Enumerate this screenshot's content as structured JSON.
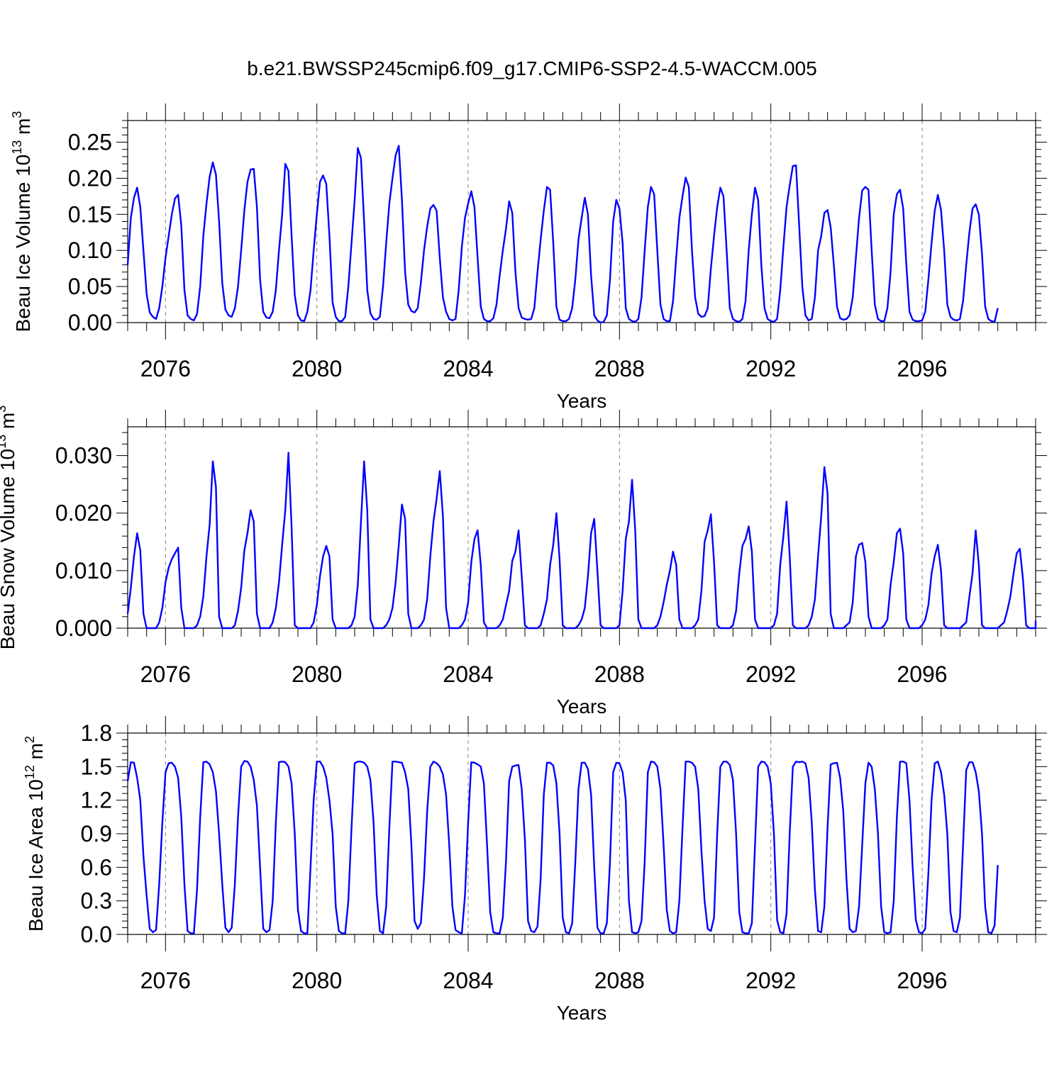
{
  "title": "b.e21.BWSSP245cmip6.f09_g17.CMIP6-SSP2-4.5-WACCM.005",
  "colors": {
    "line": "#0000ff",
    "axis": "#000000",
    "grid": "#808080"
  },
  "chart_data": [
    {
      "type": "line",
      "ylabel_main": "Beau Ice Volume 10",
      "ylabel_exp1": "13",
      "ylabel_mid": " m",
      "ylabel_exp2": "3",
      "xlabel": "Years",
      "xlim": [
        2075,
        2099
      ],
      "ylim": [
        0,
        0.28
      ],
      "yticks": [
        0.0,
        0.05,
        0.1,
        0.15,
        0.2,
        0.25
      ],
      "ytick_labels": [
        "0.00",
        "0.05",
        "0.10",
        "0.15",
        "0.20",
        "0.25"
      ],
      "xticks": [
        2076,
        2080,
        2084,
        2088,
        2092,
        2096
      ],
      "xtick_labels": [
        "2076",
        "2080",
        "2084",
        "2088",
        "2092",
        "2096"
      ],
      "x_start": 2075.0,
      "x_step": 0.08333,
      "values": [
        0.08,
        0.145,
        0.173,
        0.187,
        0.16,
        0.1,
        0.04,
        0.014,
        0.008,
        0.005,
        0.02,
        0.05,
        0.09,
        0.12,
        0.15,
        0.172,
        0.177,
        0.135,
        0.045,
        0.01,
        0.005,
        0.003,
        0.012,
        0.05,
        0.12,
        0.165,
        0.202,
        0.222,
        0.205,
        0.14,
        0.055,
        0.018,
        0.01,
        0.008,
        0.02,
        0.05,
        0.1,
        0.155,
        0.195,
        0.212,
        0.213,
        0.16,
        0.06,
        0.015,
        0.007,
        0.006,
        0.015,
        0.045,
        0.1,
        0.15,
        0.22,
        0.21,
        0.12,
        0.038,
        0.01,
        0.003,
        0.002,
        0.015,
        0.045,
        0.1,
        0.15,
        0.195,
        0.204,
        0.192,
        0.12,
        0.028,
        0.008,
        0.002,
        0.002,
        0.008,
        0.05,
        0.11,
        0.17,
        0.242,
        0.228,
        0.14,
        0.045,
        0.013,
        0.005,
        0.004,
        0.008,
        0.05,
        0.11,
        0.165,
        0.2,
        0.232,
        0.245,
        0.17,
        0.07,
        0.025,
        0.016,
        0.014,
        0.02,
        0.055,
        0.1,
        0.133,
        0.158,
        0.163,
        0.155,
        0.09,
        0.035,
        0.015,
        0.005,
        0.003,
        0.005,
        0.045,
        0.105,
        0.145,
        0.165,
        0.182,
        0.16,
        0.09,
        0.022,
        0.005,
        0.002,
        0.002,
        0.006,
        0.025,
        0.065,
        0.1,
        0.13,
        0.168,
        0.152,
        0.07,
        0.02,
        0.007,
        0.005,
        0.004,
        0.005,
        0.02,
        0.07,
        0.115,
        0.155,
        0.188,
        0.184,
        0.11,
        0.022,
        0.004,
        0.002,
        0.002,
        0.005,
        0.02,
        0.06,
        0.115,
        0.145,
        0.173,
        0.15,
        0.065,
        0.01,
        0.003,
        0.0,
        0.001,
        0.01,
        0.06,
        0.14,
        0.17,
        0.158,
        0.11,
        0.02,
        0.005,
        0.002,
        0.001,
        0.005,
        0.035,
        0.1,
        0.16,
        0.188,
        0.178,
        0.1,
        0.025,
        0.005,
        0.002,
        0.002,
        0.03,
        0.09,
        0.145,
        0.175,
        0.201,
        0.188,
        0.1,
        0.035,
        0.012,
        0.008,
        0.009,
        0.02,
        0.075,
        0.12,
        0.16,
        0.187,
        0.175,
        0.1,
        0.02,
        0.005,
        0.002,
        0.001,
        0.005,
        0.03,
        0.1,
        0.15,
        0.187,
        0.17,
        0.08,
        0.02,
        0.005,
        0.002,
        0.001,
        0.005,
        0.045,
        0.105,
        0.16,
        0.19,
        0.217,
        0.218,
        0.135,
        0.05,
        0.01,
        0.003,
        0.005,
        0.035,
        0.1,
        0.12,
        0.152,
        0.156,
        0.132,
        0.08,
        0.022,
        0.006,
        0.004,
        0.005,
        0.01,
        0.035,
        0.09,
        0.145,
        0.183,
        0.188,
        0.184,
        0.1,
        0.025,
        0.005,
        0.002,
        0.002,
        0.02,
        0.07,
        0.15,
        0.178,
        0.184,
        0.158,
        0.08,
        0.015,
        0.004,
        0.002,
        0.002,
        0.003,
        0.015,
        0.06,
        0.11,
        0.155,
        0.177,
        0.156,
        0.1,
        0.025,
        0.008,
        0.004,
        0.003,
        0.005,
        0.03,
        0.08,
        0.125,
        0.158,
        0.164,
        0.15,
        0.095,
        0.022,
        0.005,
        0.002,
        0.001,
        0.02
      ]
    },
    {
      "type": "line",
      "ylabel_main": "Beau Snow Volume 10",
      "ylabel_exp1": "13",
      "ylabel_mid": " m",
      "ylabel_exp2": "3",
      "xlabel": "Years",
      "xlim": [
        2075,
        2099
      ],
      "ylim": [
        0,
        0.035
      ],
      "yticks": [
        0.0,
        0.01,
        0.02,
        0.03
      ],
      "ytick_labels": [
        "0.000",
        "0.010",
        "0.020",
        "0.030"
      ],
      "xticks": [
        2076,
        2080,
        2084,
        2088,
        2092,
        2096
      ],
      "xtick_labels": [
        "2076",
        "2080",
        "2084",
        "2088",
        "2092",
        "2096"
      ],
      "x_start": 2075.0,
      "x_step": 0.08333,
      "values": [
        0.0025,
        0.007,
        0.0125,
        0.0165,
        0.0135,
        0.0025,
        0.0,
        0.0,
        0.0,
        0.0,
        0.001,
        0.0035,
        0.008,
        0.0105,
        0.012,
        0.013,
        0.014,
        0.0035,
        0.0,
        0.0,
        0.0,
        0.0,
        0.0005,
        0.002,
        0.0055,
        0.0125,
        0.018,
        0.029,
        0.0245,
        0.002,
        0.0,
        0.0,
        0.0,
        0.0,
        0.0005,
        0.003,
        0.007,
        0.0135,
        0.0165,
        0.0205,
        0.0185,
        0.0025,
        0.0,
        0.0,
        0.0,
        0.0,
        0.001,
        0.0035,
        0.008,
        0.0145,
        0.0205,
        0.0305,
        0.0175,
        0.0005,
        0.0,
        0.0,
        0.0,
        0.0,
        0.0,
        0.001,
        0.004,
        0.009,
        0.0125,
        0.0143,
        0.0125,
        0.0015,
        0.0,
        0.0,
        0.0,
        0.0,
        0.0,
        0.0005,
        0.002,
        0.0075,
        0.0185,
        0.029,
        0.0205,
        0.0015,
        0.0,
        0.0,
        0.0,
        0.0,
        0.0005,
        0.0015,
        0.0035,
        0.008,
        0.0145,
        0.0215,
        0.019,
        0.0025,
        0.0,
        0.0,
        0.0,
        0.0005,
        0.0015,
        0.005,
        0.0125,
        0.0185,
        0.0225,
        0.0273,
        0.0195,
        0.0035,
        0.0,
        0.0,
        0.0,
        0.0,
        0.0005,
        0.0015,
        0.0045,
        0.0115,
        0.0155,
        0.017,
        0.011,
        0.001,
        0.0,
        0.0,
        0.0,
        0.0,
        0.0005,
        0.0015,
        0.004,
        0.0065,
        0.0117,
        0.0133,
        0.017,
        0.009,
        0.0005,
        0.0,
        0.0,
        0.0,
        0.0,
        0.0005,
        0.0025,
        0.005,
        0.011,
        0.0145,
        0.02,
        0.012,
        0.0005,
        0.0,
        0.0,
        0.0,
        0.0,
        0.0005,
        0.0015,
        0.0035,
        0.009,
        0.0165,
        0.019,
        0.01,
        0.0005,
        0.0,
        0.0,
        0.0,
        0.0,
        0.0,
        0.0005,
        0.0065,
        0.0155,
        0.0185,
        0.0258,
        0.017,
        0.0015,
        0.0,
        0.0,
        0.0,
        0.0,
        0.0,
        0.0005,
        0.002,
        0.0045,
        0.0075,
        0.01,
        0.0133,
        0.011,
        0.0015,
        0.0,
        0.0,
        0.0,
        0.0,
        0.0005,
        0.0015,
        0.0065,
        0.015,
        0.017,
        0.0198,
        0.0115,
        0.0005,
        0.0,
        0.0,
        0.0,
        0.0,
        0.0005,
        0.003,
        0.0095,
        0.0143,
        0.0155,
        0.0177,
        0.0133,
        0.0015,
        0.0,
        0.0,
        0.0,
        0.0,
        0.0,
        0.0005,
        0.0025,
        0.011,
        0.016,
        0.022,
        0.0125,
        0.0005,
        0.0,
        0.0,
        0.0,
        0.0,
        0.0005,
        0.002,
        0.005,
        0.0125,
        0.0195,
        0.028,
        0.0235,
        0.0025,
        0.0,
        0.0,
        0.0,
        0.0,
        0.0005,
        0.001,
        0.0045,
        0.0125,
        0.0145,
        0.0148,
        0.0115,
        0.002,
        0.0,
        0.0,
        0.0,
        0.0,
        0.0005,
        0.0015,
        0.0075,
        0.0115,
        0.0165,
        0.0173,
        0.013,
        0.0015,
        0.0,
        0.0,
        0.0,
        0.0,
        0.0005,
        0.0015,
        0.004,
        0.0095,
        0.0125,
        0.0145,
        0.01,
        0.0005,
        0.0,
        0.0,
        0.0,
        0.0,
        0.0,
        0.0005,
        0.001,
        0.0055,
        0.0095,
        0.017,
        0.011,
        0.0005,
        0.0,
        0.0,
        0.0,
        0.0,
        0.0,
        0.0005,
        0.001,
        0.003,
        0.0055,
        0.0095,
        0.013,
        0.0138,
        0.0085,
        0.0005,
        0.0,
        0.0,
        0.0,
        0.0,
        0.0013
      ]
    },
    {
      "type": "line",
      "ylabel_main": "Beau Ice Area 10",
      "ylabel_exp1": "12",
      "ylabel_mid": " m",
      "ylabel_exp2": "2",
      "xlabel": "Years",
      "xlim": [
        2075,
        2099
      ],
      "ylim": [
        0,
        1.8
      ],
      "yticks": [
        0.0,
        0.3,
        0.6,
        0.9,
        1.2,
        1.5,
        1.8
      ],
      "ytick_labels": [
        "0.0",
        "0.3",
        "0.6",
        "0.9",
        "1.2",
        "1.5",
        "1.8"
      ],
      "xticks": [
        2076,
        2080,
        2084,
        2088,
        2092,
        2096
      ],
      "xtick_labels": [
        "2076",
        "2080",
        "2084",
        "2088",
        "2092",
        "2096"
      ],
      "x_start": 2075.0,
      "x_step": 0.08333,
      "values": [
        1.37,
        1.54,
        1.535,
        1.4,
        1.2,
        0.7,
        0.35,
        0.05,
        0.02,
        0.04,
        0.45,
        1.0,
        1.45,
        1.53,
        1.535,
        1.5,
        1.4,
        1.05,
        0.45,
        0.03,
        0.01,
        0.01,
        0.4,
        1.05,
        1.54,
        1.545,
        1.52,
        1.45,
        1.28,
        0.9,
        0.45,
        0.06,
        0.02,
        0.06,
        0.45,
        1.05,
        1.5,
        1.55,
        1.545,
        1.5,
        1.38,
        1.15,
        0.6,
        0.05,
        0.02,
        0.04,
        0.3,
        1.0,
        1.54,
        1.545,
        1.54,
        1.5,
        1.35,
        0.9,
        0.22,
        0.03,
        0.01,
        0.01,
        0.6,
        1.2,
        1.545,
        1.545,
        1.5,
        1.4,
        1.2,
        0.9,
        0.25,
        0.03,
        0.01,
        0.01,
        0.3,
        0.95,
        1.53,
        1.545,
        1.545,
        1.535,
        1.5,
        1.38,
        1.0,
        0.35,
        0.03,
        0.01,
        0.25,
        0.95,
        1.545,
        1.545,
        1.54,
        1.535,
        1.45,
        1.3,
        0.8,
        0.12,
        0.05,
        0.1,
        0.5,
        1.1,
        1.5,
        1.545,
        1.53,
        1.5,
        1.43,
        1.25,
        0.8,
        0.25,
        0.04,
        0.02,
        0.01,
        0.35,
        1.0,
        1.54,
        1.535,
        1.52,
        1.5,
        1.35,
        0.8,
        0.2,
        0.02,
        0.01,
        0.01,
        0.15,
        0.65,
        1.37,
        1.5,
        1.51,
        1.515,
        1.3,
        0.85,
        0.12,
        0.03,
        0.02,
        0.07,
        0.5,
        1.25,
        1.535,
        1.535,
        1.51,
        1.35,
        0.9,
        0.15,
        0.02,
        0.01,
        0.1,
        0.65,
        1.3,
        1.535,
        1.535,
        1.48,
        1.25,
        0.6,
        0.06,
        0.01,
        0.01,
        0.1,
        0.65,
        1.45,
        1.535,
        1.53,
        1.45,
        1.2,
        0.3,
        0.02,
        0.01,
        0.02,
        0.12,
        0.65,
        1.45,
        1.545,
        1.54,
        1.5,
        1.3,
        0.8,
        0.22,
        0.03,
        0.01,
        0.02,
        0.3,
        0.95,
        1.545,
        1.545,
        1.535,
        1.5,
        1.3,
        0.75,
        0.3,
        0.05,
        0.03,
        0.15,
        0.9,
        1.5,
        1.545,
        1.545,
        1.515,
        1.38,
        0.9,
        0.2,
        0.02,
        0.01,
        0.01,
        0.1,
        0.8,
        1.5,
        1.545,
        1.54,
        1.5,
        1.35,
        0.9,
        0.13,
        0.02,
        0.01,
        0.18,
        0.9,
        1.5,
        1.545,
        1.54,
        1.545,
        1.53,
        1.4,
        1.0,
        0.4,
        0.03,
        0.02,
        0.25,
        0.95,
        1.52,
        1.53,
        1.535,
        1.4,
        1.1,
        0.5,
        0.05,
        0.02,
        0.03,
        0.25,
        0.8,
        1.35,
        1.535,
        1.5,
        1.3,
        0.9,
        0.25,
        0.02,
        0.01,
        0.02,
        0.3,
        1.05,
        1.545,
        1.545,
        1.53,
        1.2,
        0.6,
        0.13,
        0.02,
        0.01,
        0.05,
        0.55,
        1.2,
        1.53,
        1.545,
        1.45,
        1.25,
        0.9,
        0.2,
        0.03,
        0.02,
        0.15,
        0.8,
        1.47,
        1.54,
        1.54,
        1.45,
        1.28,
        0.9,
        0.25,
        0.02,
        0.01,
        0.08,
        0.62
      ]
    }
  ]
}
